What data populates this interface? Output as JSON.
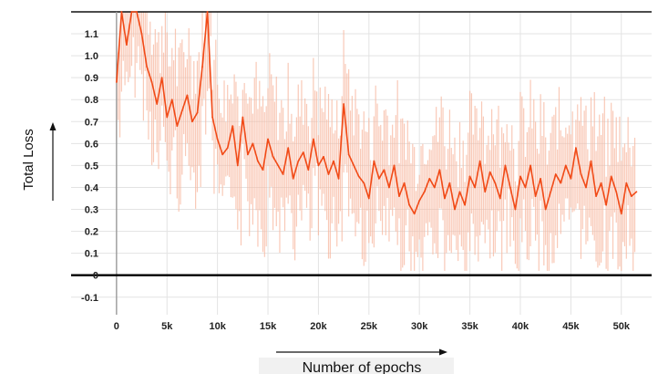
{
  "chart_data": {
    "type": "line",
    "xlabel": "Number of epochs",
    "ylabel": "Total Loss",
    "xlim": [
      -4500,
      53000
    ],
    "ylim": [
      -0.18,
      1.2
    ],
    "x_ticks": [
      0,
      5000,
      10000,
      15000,
      20000,
      25000,
      30000,
      35000,
      40000,
      45000,
      50000
    ],
    "x_tick_labels": [
      "0",
      "5k",
      "10k",
      "15k",
      "20k",
      "25k",
      "30k",
      "35k",
      "40k",
      "45k",
      "50k"
    ],
    "y_ticks": [
      -0.1,
      0,
      0.1,
      0.2,
      0.3,
      0.4,
      0.5,
      0.6,
      0.7,
      0.8,
      0.9,
      1.0,
      1.1
    ],
    "y_tick_labels": [
      "-0.1",
      "0",
      "0.1",
      "0.2",
      "0.3",
      "0.4",
      "0.5",
      "0.6",
      "0.7",
      "0.8",
      "0.9",
      "1.0",
      "1.1"
    ],
    "grid": true,
    "series": [
      {
        "color": "#f14a17",
        "x": [
          0,
          500,
          1000,
          1500,
          2000,
          2500,
          3000,
          3500,
          4000,
          4500,
          5000,
          5500,
          6000,
          6500,
          7000,
          7500,
          8000,
          8500,
          9000,
          9500,
          10000,
          10500,
          11000,
          11500,
          12000,
          12500,
          13000,
          13500,
          14000,
          14500,
          15000,
          15500,
          16000,
          16500,
          17000,
          17500,
          18000,
          18500,
          19000,
          19500,
          20000,
          20500,
          21000,
          21500,
          22000,
          22500,
          23000,
          23500,
          24000,
          24500,
          25000,
          25500,
          26000,
          26500,
          27000,
          27500,
          28000,
          28500,
          29000,
          29500,
          30000,
          30500,
          31000,
          31500,
          32000,
          32500,
          33000,
          33500,
          34000,
          34500,
          35000,
          35500,
          36000,
          36500,
          37000,
          37500,
          38000,
          38500,
          39000,
          39500,
          40000,
          40500,
          41000,
          41500,
          42000,
          42500,
          43000,
          43500,
          44000,
          44500,
          45000,
          45500,
          46000,
          46500,
          47000,
          47500,
          48000,
          48500,
          49000,
          49500,
          50000,
          50500,
          51000,
          51500
        ],
        "values": [
          0.88,
          1.2,
          1.05,
          1.2,
          1.2,
          1.1,
          0.95,
          0.88,
          0.78,
          0.9,
          0.72,
          0.8,
          0.68,
          0.75,
          0.82,
          0.7,
          0.74,
          0.95,
          1.2,
          0.72,
          0.62,
          0.55,
          0.58,
          0.68,
          0.5,
          0.72,
          0.55,
          0.6,
          0.52,
          0.48,
          0.62,
          0.54,
          0.5,
          0.46,
          0.58,
          0.44,
          0.52,
          0.56,
          0.48,
          0.62,
          0.5,
          0.54,
          0.46,
          0.52,
          0.44,
          0.78,
          0.55,
          0.5,
          0.45,
          0.42,
          0.35,
          0.52,
          0.44,
          0.48,
          0.4,
          0.5,
          0.36,
          0.42,
          0.32,
          0.28,
          0.34,
          0.38,
          0.44,
          0.4,
          0.48,
          0.35,
          0.42,
          0.3,
          0.38,
          0.32,
          0.45,
          0.4,
          0.52,
          0.38,
          0.47,
          0.42,
          0.35,
          0.5,
          0.4,
          0.3,
          0.45,
          0.4,
          0.5,
          0.36,
          0.44,
          0.3,
          0.38,
          0.46,
          0.42,
          0.5,
          0.44,
          0.58,
          0.46,
          0.4,
          0.52,
          0.36,
          0.42,
          0.32,
          0.45,
          0.38,
          0.28,
          0.42,
          0.36,
          0.38
        ]
      }
    ]
  }
}
